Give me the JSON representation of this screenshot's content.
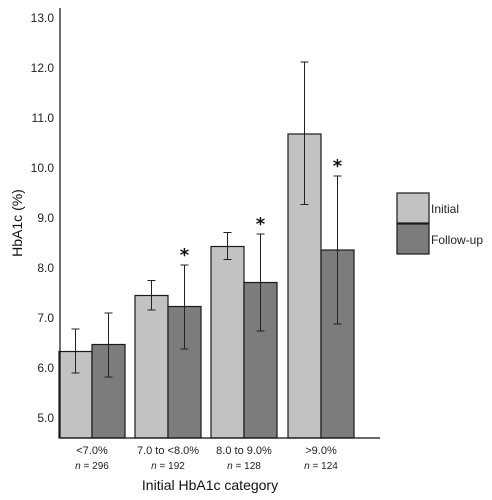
{
  "chart_data": {
    "type": "bar",
    "xlabel": "Initial HbA1c category",
    "ylabel": "HbA1c (%)",
    "ylim": [
      4.6,
      13.2
    ],
    "yticks": [
      "5.0",
      "6.0",
      "7.0",
      "8.0",
      "9.0",
      "10.0",
      "11.0",
      "12.0",
      "13.0"
    ],
    "categories": [
      "<7.0%",
      "7.0 to <8.0%",
      "8.0 to 9.0%",
      ">9.0%"
    ],
    "n_prefix": "n",
    "n_values": [
      "= 296",
      "= 192",
      "= 128",
      "= 124"
    ],
    "series": [
      {
        "name": "Initial",
        "color": "#c2c2c2",
        "values": [
          6.33,
          7.45,
          8.43,
          10.68
        ],
        "err_low": [
          5.9,
          7.16,
          8.17,
          9.27
        ],
        "err_high": [
          6.78,
          7.75,
          8.71,
          12.12
        ]
      },
      {
        "name": "Follow-up",
        "color": "#7c7c7c",
        "values": [
          6.47,
          7.23,
          7.71,
          8.36
        ],
        "err_low": [
          5.82,
          6.38,
          6.74,
          6.88
        ],
        "err_high": [
          7.1,
          8.06,
          8.68,
          9.84
        ]
      }
    ],
    "significance_marker": "*",
    "significant_followup": [
      false,
      true,
      true,
      true
    ],
    "legend_position": "right",
    "grid": false
  }
}
